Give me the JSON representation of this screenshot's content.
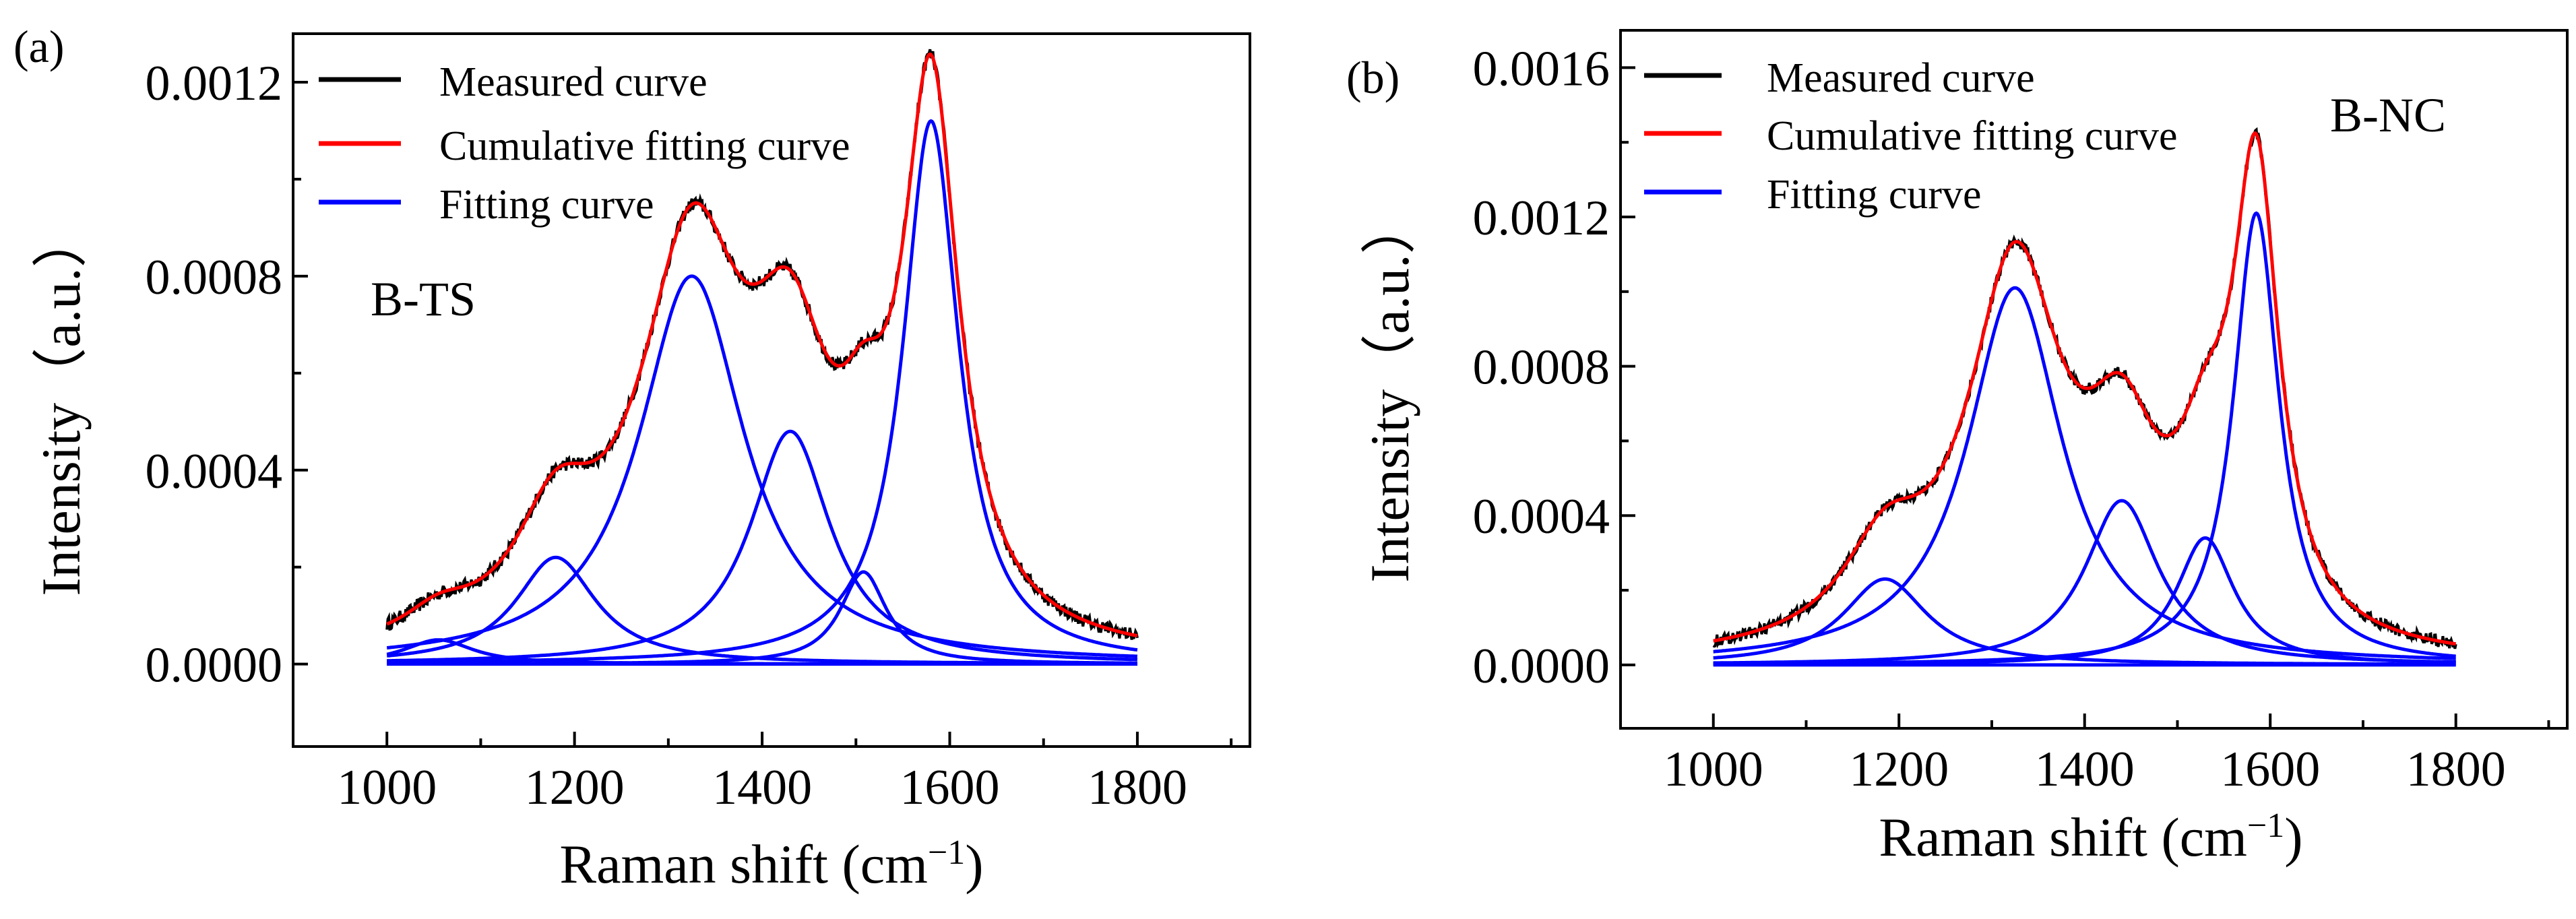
{
  "chart_data": [
    {
      "type": "line",
      "panel_label": "(a)",
      "sample_label": "B-TS",
      "xlabel": "Raman shift (cm",
      "xlabel_superscript": "−1",
      "xlabel_close": ")",
      "ylabel": "Intensity（a.u.）",
      "xlim": [
        900,
        1920
      ],
      "ylim": [
        -0.00017,
        0.0013
      ],
      "xticks": [
        1000,
        1200,
        1400,
        1600,
        1800
      ],
      "yticks": [
        0.0,
        0.0004,
        0.0008,
        0.0012
      ],
      "ytick_labels": [
        "0.0000",
        "0.0004",
        "0.0008",
        "0.0012"
      ],
      "xrange": [
        1000,
        1800
      ],
      "legend": {
        "position": "top-left",
        "entries": [
          {
            "label": "Measured curve",
            "color": "#000000"
          },
          {
            "label": "Cumulative fitting curve",
            "color": "#ff0000"
          },
          {
            "label": "Fitting curve",
            "color": "#0000ff"
          }
        ]
      },
      "fitting_peaks": [
        {
          "center": 1055,
          "height": 5e-05,
          "width": 45
        },
        {
          "center": 1180,
          "height": 0.00022,
          "width": 52
        },
        {
          "center": 1325,
          "height": 0.0008,
          "width": 68
        },
        {
          "center": 1430,
          "height": 0.00048,
          "width": 52
        },
        {
          "center": 1508,
          "height": 0.00019,
          "width": 30
        },
        {
          "center": 1580,
          "height": 0.00112,
          "width": 36
        }
      ],
      "measured_noise": 1.4e-05,
      "colors": {
        "measured": "#000000",
        "cumulative": "#ff0000",
        "fitting": "#0000ff"
      }
    },
    {
      "type": "line",
      "panel_label": "(b)",
      "sample_label": "B-NC",
      "xlabel": "Raman shift   (cm",
      "xlabel_superscript": "−1",
      "xlabel_close": ")",
      "ylabel": "Intensity（a.u.）",
      "xlim": [
        900,
        1920
      ],
      "ylim": [
        -0.00017,
        0.0017
      ],
      "xticks": [
        1000,
        1200,
        1400,
        1600,
        1800
      ],
      "yticks": [
        0.0,
        0.0004,
        0.0008,
        0.0012,
        0.0016
      ],
      "ytick_labels": [
        "0.0000",
        "0.0004",
        "0.0008",
        "0.0012",
        "0.0016"
      ],
      "xrange": [
        1000,
        1800
      ],
      "legend": {
        "position": "top-left",
        "entries": [
          {
            "label": "Measured curve",
            "color": "#000000"
          },
          {
            "label": "Cumulative fitting curve",
            "color": "#ff0000"
          },
          {
            "label": "Fitting curve",
            "color": "#0000ff"
          }
        ]
      },
      "fitting_peaks": [
        {
          "center": 1185,
          "height": 0.00023,
          "width": 55
        },
        {
          "center": 1325,
          "height": 0.00101,
          "width": 62
        },
        {
          "center": 1440,
          "height": 0.00044,
          "width": 48
        },
        {
          "center": 1530,
          "height": 0.00034,
          "width": 38
        },
        {
          "center": 1585,
          "height": 0.00121,
          "width": 30
        }
      ],
      "measured_noise": 1.6e-05,
      "colors": {
        "measured": "#000000",
        "cumulative": "#ff0000",
        "fitting": "#0000ff"
      }
    }
  ]
}
